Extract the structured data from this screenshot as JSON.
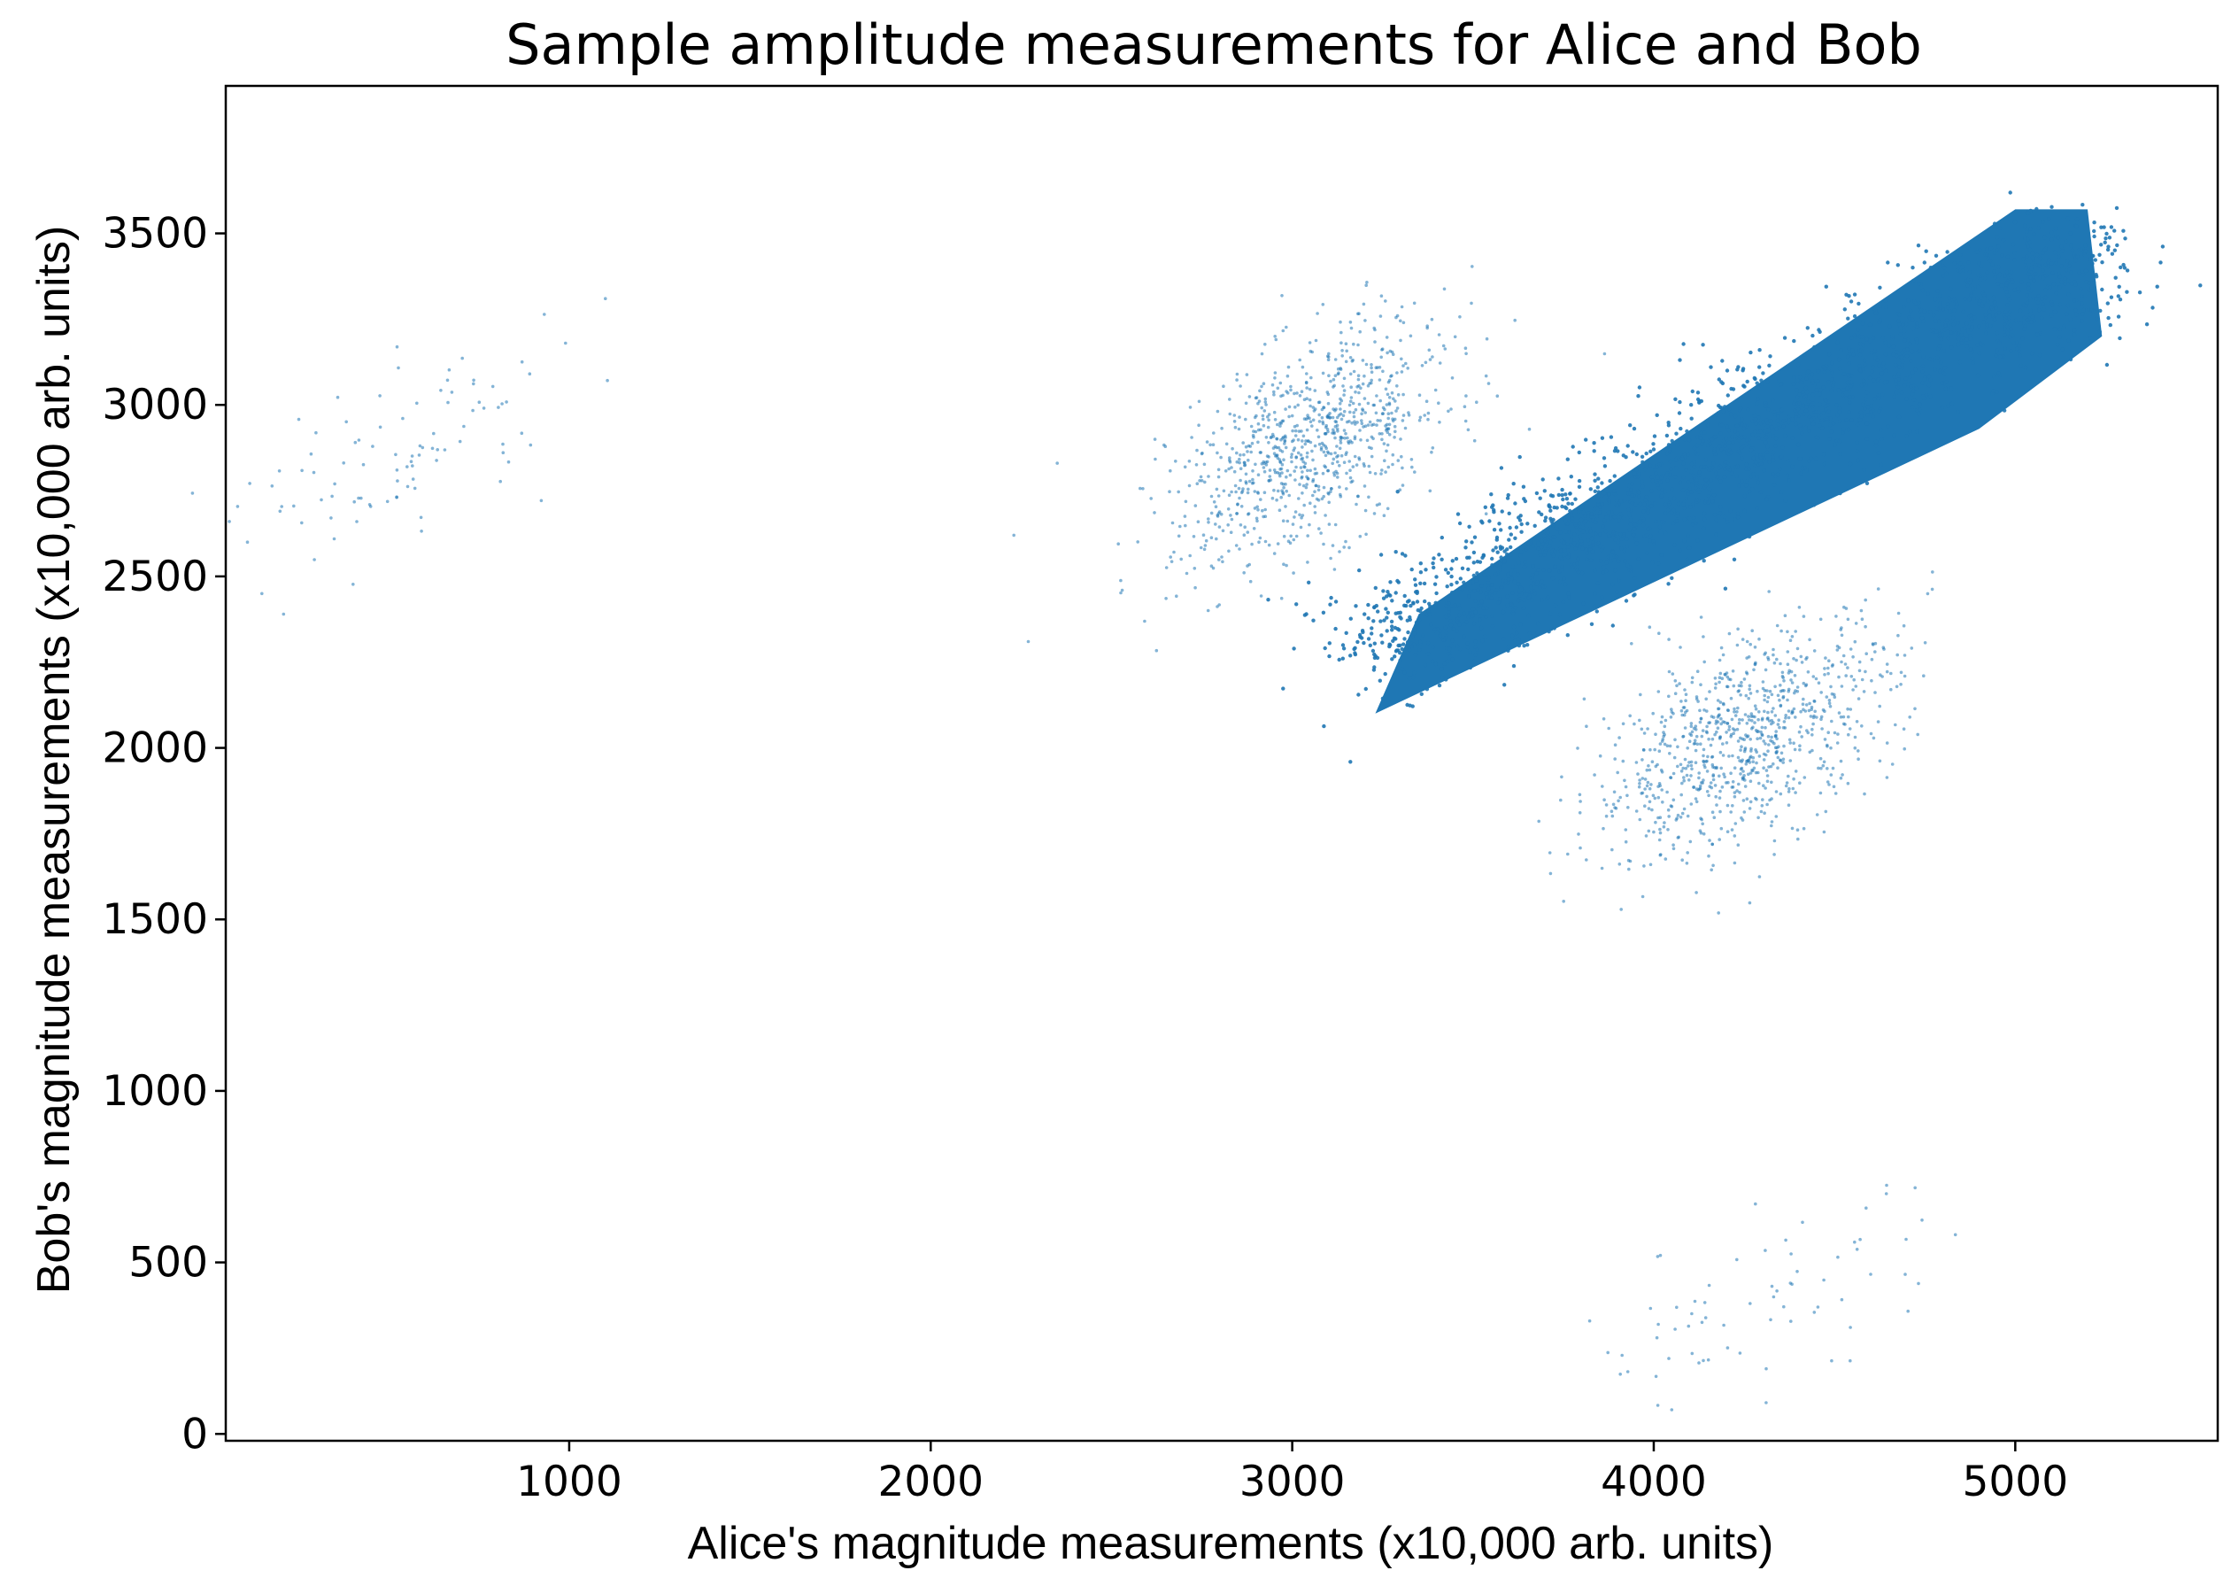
{
  "chart_data": {
    "type": "scatter",
    "title": "Sample amplitude measurements for Alice and Bob",
    "xlabel": "Alice's magnitude measurements (x10,000 arb. units)",
    "ylabel": "Bob's magnitude measurements (x10,000 arb. units)",
    "xlim": [
      50,
      5560
    ],
    "ylim": [
      -20,
      3930
    ],
    "xticks": [
      {
        "value": 1000,
        "label": "1000"
      },
      {
        "value": 2000,
        "label": "2000"
      },
      {
        "value": 3000,
        "label": "3000"
      },
      {
        "value": 4000,
        "label": "4000"
      },
      {
        "value": 5000,
        "label": "5000"
      }
    ],
    "yticks": [
      {
        "value": 0,
        "label": "0"
      },
      {
        "value": 500,
        "label": "500"
      },
      {
        "value": 1000,
        "label": "1000"
      },
      {
        "value": 1500,
        "label": "1500"
      },
      {
        "value": 2000,
        "label": "2000"
      },
      {
        "value": 2500,
        "label": "2500"
      },
      {
        "value": 3000,
        "label": "3000"
      },
      {
        "value": 3500,
        "label": "3500"
      }
    ],
    "grid": false,
    "marker_color": "#1f77b4",
    "series": [
      {
        "clusters": [
          {
            "kind": "dense",
            "from": [
              3230,
              2280
            ],
            "to": [
              5200,
              3450
            ],
            "count": 150000
          },
          {
            "kind": "sparse",
            "center": [
              3050,
              2880
            ],
            "spread": [
              190,
              170
            ],
            "count": 900
          },
          {
            "kind": "sparse",
            "center": [
              4250,
              2030
            ],
            "spread": [
              210,
              170
            ],
            "count": 900
          },
          {
            "kind": "sparse",
            "center": [
              560,
              2870
            ],
            "spread": [
              200,
              140
            ],
            "count": 90
          },
          {
            "kind": "sparse",
            "center": [
              4300,
              380
            ],
            "spread": [
              260,
              140
            ],
            "count": 70
          }
        ],
        "points": [
          [
            60,
            2660
          ],
          [
            110,
            2600
          ],
          [
            200,
            2690
          ],
          [
            1100,
            3310
          ],
          [
            990,
            3180
          ],
          [
            2270,
            2310
          ],
          [
            2230,
            2620
          ],
          [
            2350,
            2830
          ],
          [
            150,
            2450
          ],
          [
            210,
            2390
          ]
        ]
      }
    ]
  }
}
